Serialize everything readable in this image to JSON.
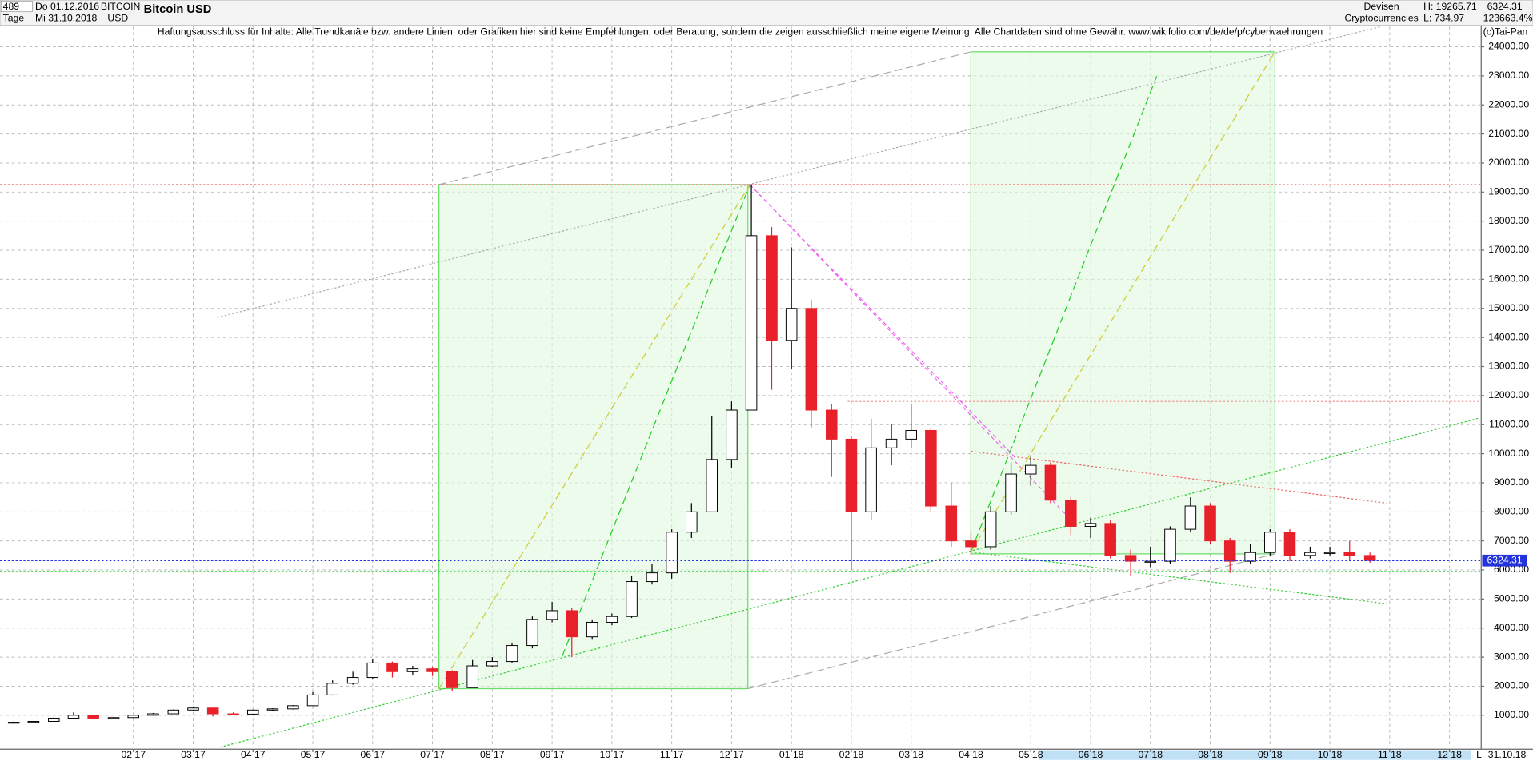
{
  "header": {
    "count": "489",
    "period": "Tage",
    "date_from": "Do 01.12.2016",
    "date_to": "Mi 31.10.2018",
    "symbol": "BITCOIN",
    "currency": "USD",
    "name": "Bitcoin USD",
    "market": "Devisen",
    "sector": "Cryptocurrencies",
    "high": "H: 19265.71",
    "low": "L: 734.97",
    "change": "123663.4%",
    "disclaimer": "Haftungsausschluss für Inhalte: Alle Trendkanäle bzw. andere Linien, oder Grafiken hier sind keine Empfehlungen, oder Beratung, sondern die zeigen ausschließlich meine eigene Meinung. Alle Chartdaten sind ohne Gewähr.  www.wikifolio.com/de/de/p/cyberwaehrungen",
    "copyright": "(c)Tai-Pan",
    "end_date": "31.10.18",
    "scale_mode": "L"
  },
  "chart_data": {
    "type": "candlestick",
    "up_color": "#000000",
    "down_color": "#e8202a",
    "grid": true,
    "last_price": 6324.31,
    "last_price_color": "#2233dd",
    "xlim": [
      -0.23,
      24.53
    ],
    "ylim": [
      -100,
      24700
    ],
    "xticks": [
      {
        "value": 2,
        "label": "02 17"
      },
      {
        "value": 3,
        "label": "03 17"
      },
      {
        "value": 4,
        "label": "04 17"
      },
      {
        "value": 5,
        "label": "05 17"
      },
      {
        "value": 6,
        "label": "06 17"
      },
      {
        "value": 7,
        "label": "07 17"
      },
      {
        "value": 8,
        "label": "08 17"
      },
      {
        "value": 9,
        "label": "09 17"
      },
      {
        "value": 10,
        "label": "10 17"
      },
      {
        "value": 11,
        "label": "11 17"
      },
      {
        "value": 12,
        "label": "12 17"
      },
      {
        "value": 13,
        "label": "01 18"
      },
      {
        "value": 14,
        "label": "02 18"
      },
      {
        "value": 15,
        "label": "03 18"
      },
      {
        "value": 16,
        "label": "04 18"
      },
      {
        "value": 17,
        "label": "05 18"
      },
      {
        "value": 18,
        "label": "06 18"
      },
      {
        "value": 19,
        "label": "07 18"
      },
      {
        "value": 20,
        "label": "08 18"
      },
      {
        "value": 21,
        "label": "09 18"
      },
      {
        "value": 22,
        "label": "10 18"
      },
      {
        "value": 23,
        "label": "11 18"
      },
      {
        "value": 24,
        "label": "12 18"
      }
    ],
    "yticks": [
      {
        "value": 1000,
        "label": "1000.00"
      },
      {
        "value": 2000,
        "label": "2000.00"
      },
      {
        "value": 3000,
        "label": "3000.00"
      },
      {
        "value": 4000,
        "label": "4000.00"
      },
      {
        "value": 5000,
        "label": "5000.00"
      },
      {
        "value": 6000,
        "label": "6000.00"
      },
      {
        "value": 7000,
        "label": "7000.00"
      },
      {
        "value": 8000,
        "label": "8000.00"
      },
      {
        "value": 9000,
        "label": "9000.00"
      },
      {
        "value": 10000,
        "label": "10000.00"
      },
      {
        "value": 11000,
        "label": "11000.00"
      },
      {
        "value": 12000,
        "label": "12000.00"
      },
      {
        "value": 13000,
        "label": "13000.00"
      },
      {
        "value": 14000,
        "label": "14000.00"
      },
      {
        "value": 15000,
        "label": "15000.00"
      },
      {
        "value": 16000,
        "label": "16000.00"
      },
      {
        "value": 17000,
        "label": "17000.00"
      },
      {
        "value": 18000,
        "label": "18000.00"
      },
      {
        "value": 19000,
        "label": "19000.00"
      },
      {
        "value": 20000,
        "label": "20000.00"
      },
      {
        "value": 21000,
        "label": "21000.00"
      },
      {
        "value": 22000,
        "label": "22000.00"
      },
      {
        "value": 23000,
        "label": "23000.00"
      },
      {
        "value": 24000,
        "label": "24000.00"
      }
    ],
    "x": [
      0,
      0.33,
      0.67,
      1,
      1.33,
      1.67,
      2,
      2.33,
      2.67,
      3,
      3.33,
      3.67,
      4,
      4.33,
      4.67,
      5,
      5.33,
      5.67,
      6,
      6.33,
      6.67,
      7,
      7.33,
      7.67,
      8,
      8.33,
      8.67,
      9,
      9.33,
      9.67,
      10,
      10.33,
      10.67,
      11,
      11.33,
      11.67,
      12,
      12.33,
      12.67,
      13,
      13.33,
      13.67,
      14,
      14.33,
      14.67,
      15,
      15.33,
      15.67,
      16,
      16.33,
      16.67,
      17,
      17.33,
      17.67,
      18,
      18.33,
      18.67,
      19,
      19.33,
      19.67,
      20,
      20.33,
      20.67,
      21,
      21.33,
      21.67,
      22,
      22.33,
      22.67
    ],
    "open": [
      750,
      760,
      790,
      900,
      1000,
      900,
      920,
      1000,
      1050,
      1180,
      1250,
      1050,
      1040,
      1180,
      1220,
      1330,
      1700,
      2100,
      2300,
      2800,
      2500,
      2600,
      2500,
      1950,
      2700,
      2850,
      3400,
      4300,
      4600,
      3700,
      4200,
      4400,
      5600,
      5900,
      7300,
      8000,
      9800,
      11500,
      17500,
      13900,
      15000,
      11500,
      10500,
      8000,
      10200,
      10500,
      10800,
      8200,
      7000,
      6800,
      8000,
      9300,
      9600,
      8400,
      7500,
      7600,
      6500,
      6300,
      6300,
      7400,
      8200,
      7000,
      6300,
      6600,
      7300,
      6500,
      6600,
      6600,
      6500
    ],
    "high": [
      790,
      800,
      920,
      1100,
      1020,
      940,
      1010,
      1080,
      1200,
      1290,
      1260,
      1100,
      1200,
      1240,
      1350,
      1800,
      2200,
      2500,
      2950,
      2850,
      2700,
      2650,
      2550,
      2900,
      3000,
      3500,
      4400,
      4900,
      4700,
      4300,
      4500,
      5800,
      6200,
      7400,
      8300,
      11300,
      11800,
      19266,
      17800,
      17100,
      15300,
      11700,
      10600,
      11200,
      11000,
      11700,
      10900,
      9000,
      7300,
      8200,
      9700,
      9900,
      9700,
      8500,
      7800,
      7700,
      6700,
      6800,
      7500,
      8500,
      8300,
      7100,
      6900,
      7400,
      7400,
      6800,
      6800,
      7000,
      6600
    ],
    "low": [
      740,
      750,
      780,
      880,
      870,
      890,
      910,
      990,
      1040,
      1150,
      960,
      1000,
      1030,
      1160,
      1200,
      1320,
      1680,
      2050,
      2250,
      2300,
      2400,
      2350,
      1850,
      1950,
      2650,
      2800,
      3300,
      4200,
      3000,
      3600,
      4100,
      4350,
      5500,
      5700,
      7100,
      8000,
      9500,
      11500,
      12200,
      12900,
      10900,
      9200,
      6000,
      7700,
      9600,
      10200,
      8000,
      6800,
      6500,
      6700,
      7900,
      8900,
      8300,
      7200,
      7100,
      6400,
      5800,
      6100,
      6200,
      7300,
      6900,
      5900,
      6200,
      6500,
      6300,
      6400,
      6500,
      6300,
      6250
    ],
    "close": [
      760,
      790,
      900,
      1000,
      900,
      920,
      1000,
      1050,
      1180,
      1250,
      1050,
      1040,
      1180,
      1220,
      1330,
      1700,
      2100,
      2300,
      2800,
      2500,
      2600,
      2500,
      1950,
      2700,
      2850,
      3400,
      4300,
      4600,
      3700,
      4200,
      4400,
      5600,
      5900,
      7300,
      8000,
      9800,
      11500,
      17500,
      13900,
      15000,
      11500,
      10500,
      8000,
      10200,
      10500,
      10800,
      8200,
      7000,
      6800,
      8000,
      9300,
      9600,
      8400,
      7500,
      7600,
      6500,
      6300,
      6300,
      7400,
      8200,
      7000,
      6300,
      6600,
      7300,
      6500,
      6600,
      6600,
      6500,
      6324
    ]
  }
}
